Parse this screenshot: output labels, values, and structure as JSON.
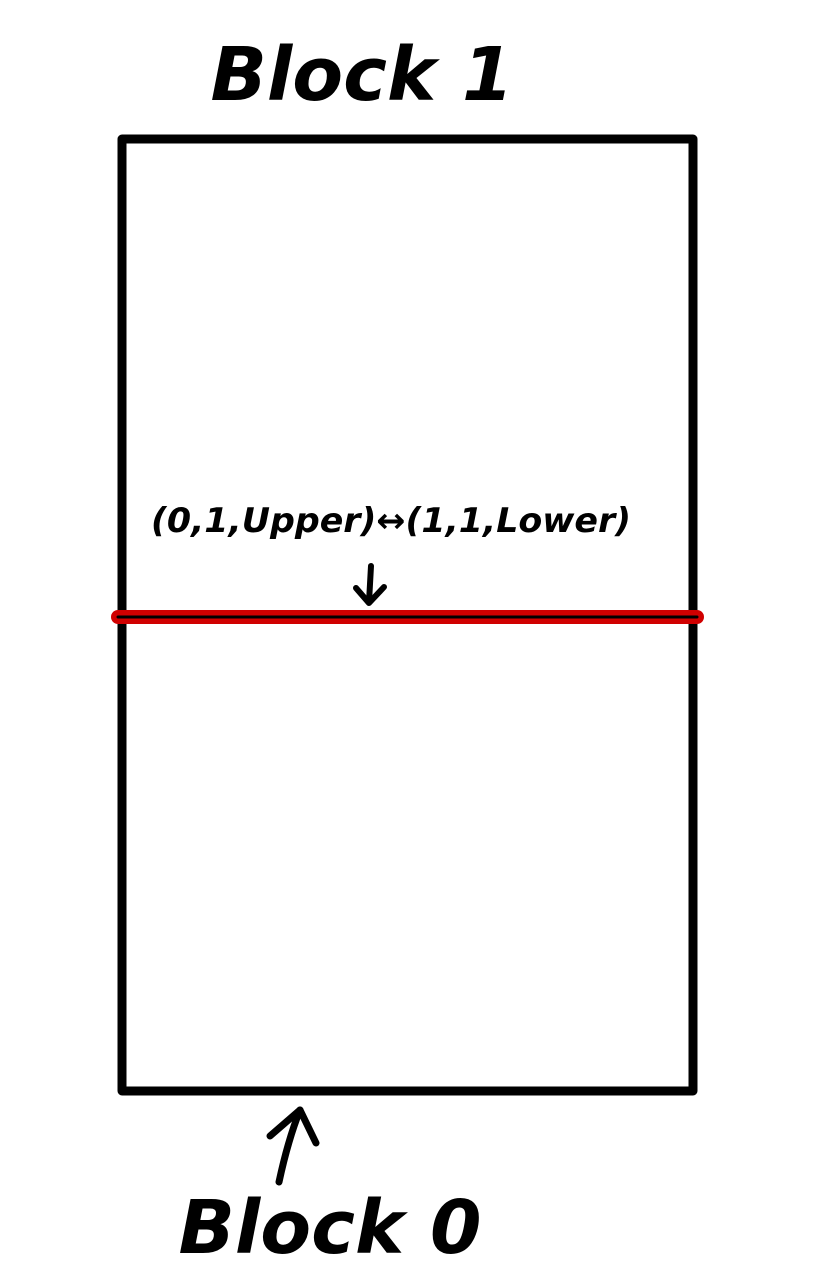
{
  "diagram": {
    "top_label": "Block 1",
    "bottom_label": "Block 0",
    "boundary_label": "(0,1,Upper)↔(1,1,Lower)",
    "colors": {
      "stroke": "#000000",
      "boundary": "#d00000",
      "background": "#ffffff"
    }
  }
}
